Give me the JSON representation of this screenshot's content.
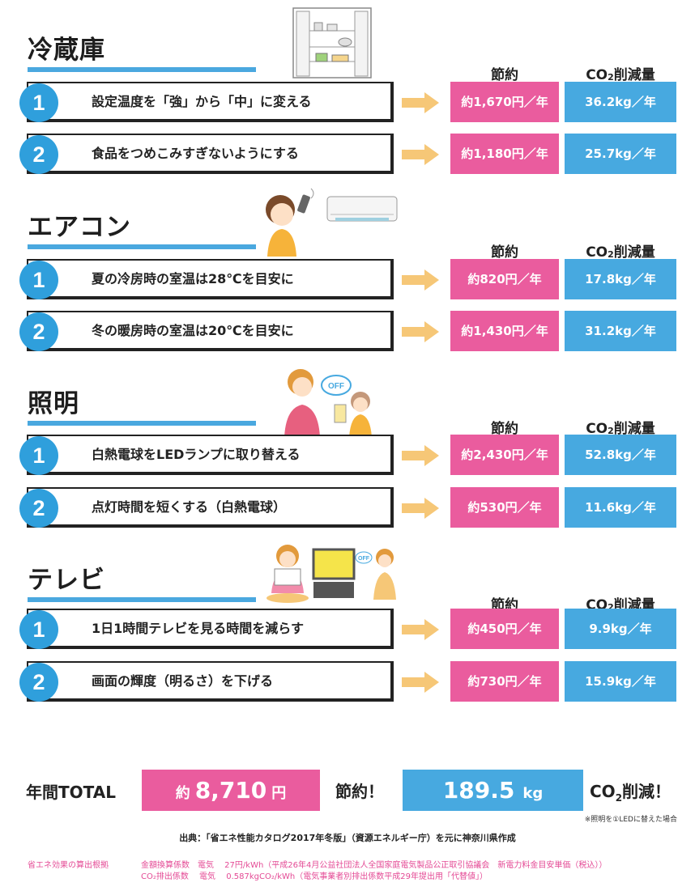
{
  "column_headers": {
    "saving": "節約",
    "co2_prefix": "CO",
    "co2_sub": "2",
    "co2_suffix": "削減量"
  },
  "sections": [
    {
      "title": "冷蔵庫",
      "illustration": "refrigerator-illustration",
      "rows": [
        {
          "num": "1",
          "text": "設定温度を「強」から「中」に変える",
          "saving": "約1,670円／年",
          "co2": "36.2kg／年"
        },
        {
          "num": "2",
          "text": "食品をつめこみすぎないようにする",
          "saving": "約1,180円／年",
          "co2": "25.7kg／年"
        }
      ]
    },
    {
      "title": "エアコン",
      "illustration": "air-conditioner-illustration",
      "rows": [
        {
          "num": "1",
          "text": "夏の冷房時の室温は28℃を目安に",
          "saving": "約820円／年",
          "co2": "17.8kg／年"
        },
        {
          "num": "2",
          "text": "冬の暖房時の室温は20℃を目安に",
          "saving": "約1,430円／年",
          "co2": "31.2kg／年"
        }
      ]
    },
    {
      "title": "照明",
      "illustration": "lighting-illustration",
      "off_label": "OFF",
      "rows": [
        {
          "num": "1",
          "text": "白熱電球をLEDランプに取り替える",
          "saving": "約2,430円／年",
          "co2": "52.8kg／年"
        },
        {
          "num": "2",
          "text": "点灯時間を短くする（白熱電球）",
          "saving": "約530円／年",
          "co2": "11.6kg／年"
        }
      ]
    },
    {
      "title": "テレビ",
      "illustration": "television-illustration",
      "off_label": "OFF",
      "rows": [
        {
          "num": "1",
          "text": "1日1時間テレビを見る時間を減らす",
          "saving": "約450円／年",
          "co2": "9.9kg／年"
        },
        {
          "num": "2",
          "text": "画面の輝度（明るさ）を下げる",
          "saving": "約730円／年",
          "co2": "15.9kg／年"
        }
      ]
    }
  ],
  "total": {
    "label": "年間TOTAL",
    "saving_prefix": "約",
    "saving_value": "8,710",
    "saving_unit": "円",
    "saving_label": "節約！",
    "co2_value": "189.5",
    "co2_unit": "kg",
    "co2_label_prefix": "CO",
    "co2_label_sub": "2",
    "co2_label_suffix": "削減！"
  },
  "note": "※照明を①LEDに替えた場合",
  "source": "出典：「省エネ性能カタログ2017年冬版」（資源エネルギー庁）を元に神奈川県作成",
  "basis": {
    "label": "省エネ効果の算出根拠",
    "line1": "金額換算係数　電気　 27円/kWh（平成26年4月公益社団法人全国家庭電気製品公正取引協議会　新電力料金目安単価（税込））",
    "line2": "CO₂排出係数　 電気　 0.587kgCO₂/kWh（電気事業者別排出係数平成29年提出用「代替値」）"
  },
  "colors": {
    "saving": "#ea5c9e",
    "co2": "#47a9e0",
    "accent_line": "#4aa8df",
    "arrow": "#f6c777",
    "basis_text": "#e44a95"
  }
}
